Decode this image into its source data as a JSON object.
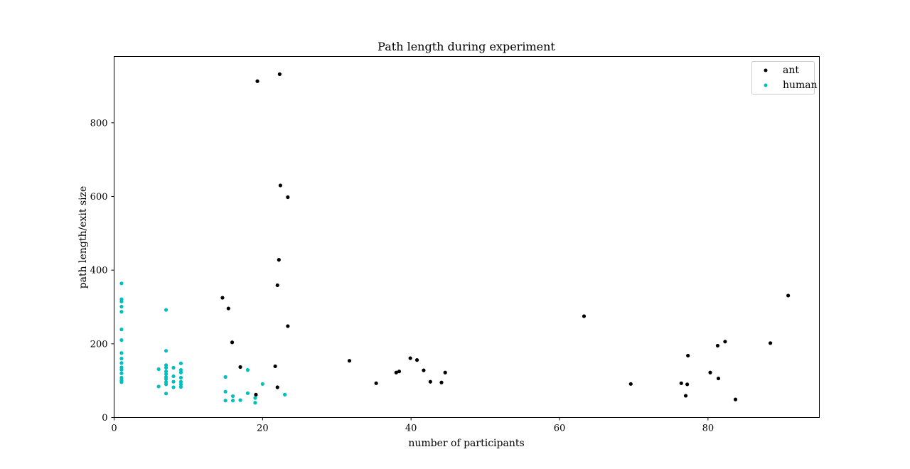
{
  "chart_data": {
    "type": "scatter",
    "title": "Path length during experiment",
    "xlabel": "number of participants",
    "ylabel": "path length/exit size",
    "xlim": [
      0,
      95
    ],
    "ylim": [
      0,
      980
    ],
    "xticks": [
      0,
      20,
      40,
      60,
      80
    ],
    "yticks": [
      0,
      200,
      400,
      600,
      800
    ],
    "grid": false,
    "legend_position": "top-right",
    "series": [
      {
        "name": "ant",
        "color": "#000000",
        "points": [
          [
            19.3,
            913
          ],
          [
            22.3,
            932
          ],
          [
            22.4,
            630
          ],
          [
            23.4,
            598
          ],
          [
            22.2,
            428
          ],
          [
            22.0,
            359
          ],
          [
            14.6,
            325
          ],
          [
            15.4,
            296
          ],
          [
            23.4,
            248
          ],
          [
            15.9,
            204
          ],
          [
            17.0,
            137
          ],
          [
            21.7,
            139
          ],
          [
            19.1,
            62
          ],
          [
            22.0,
            82
          ],
          [
            31.7,
            154
          ],
          [
            35.3,
            93
          ],
          [
            38.0,
            122
          ],
          [
            38.4,
            125
          ],
          [
            39.9,
            161
          ],
          [
            40.8,
            156
          ],
          [
            41.7,
            128
          ],
          [
            42.6,
            97
          ],
          [
            44.1,
            95
          ],
          [
            44.6,
            122
          ],
          [
            63.3,
            275
          ],
          [
            69.6,
            91
          ],
          [
            76.4,
            93
          ],
          [
            77.2,
            90
          ],
          [
            77.0,
            59
          ],
          [
            77.3,
            168
          ],
          [
            80.3,
            122
          ],
          [
            81.3,
            195
          ],
          [
            81.4,
            106
          ],
          [
            82.3,
            206
          ],
          [
            83.7,
            49
          ],
          [
            88.4,
            202
          ],
          [
            90.8,
            331
          ]
        ]
      },
      {
        "name": "human",
        "color": "#00bfbf",
        "points": [
          [
            1,
            364
          ],
          [
            1,
            321
          ],
          [
            1,
            315
          ],
          [
            1,
            301
          ],
          [
            1,
            287
          ],
          [
            1,
            239
          ],
          [
            1,
            210
          ],
          [
            1,
            175
          ],
          [
            1,
            160
          ],
          [
            1,
            148
          ],
          [
            1,
            136
          ],
          [
            1,
            130
          ],
          [
            1,
            120
          ],
          [
            1,
            108
          ],
          [
            1,
            101
          ],
          [
            1,
            96
          ],
          [
            6,
            131
          ],
          [
            6,
            84
          ],
          [
            7,
            292
          ],
          [
            7,
            181
          ],
          [
            7,
            142
          ],
          [
            7,
            135
          ],
          [
            7,
            125
          ],
          [
            7,
            118
          ],
          [
            7,
            110
          ],
          [
            7,
            104
          ],
          [
            7,
            96
          ],
          [
            7,
            90
          ],
          [
            7,
            65
          ],
          [
            8,
            135
          ],
          [
            8,
            112
          ],
          [
            8,
            97
          ],
          [
            8,
            82
          ],
          [
            9,
            147
          ],
          [
            9,
            129
          ],
          [
            9,
            122
          ],
          [
            9,
            108
          ],
          [
            9,
            97
          ],
          [
            9,
            90
          ],
          [
            9,
            83
          ],
          [
            15,
            110
          ],
          [
            15,
            70
          ],
          [
            15,
            46
          ],
          [
            16,
            58
          ],
          [
            16,
            46
          ],
          [
            17,
            47
          ],
          [
            18,
            129
          ],
          [
            18,
            66
          ],
          [
            19,
            53
          ],
          [
            19,
            40
          ],
          [
            20,
            91
          ],
          [
            23,
            62
          ]
        ]
      }
    ]
  }
}
